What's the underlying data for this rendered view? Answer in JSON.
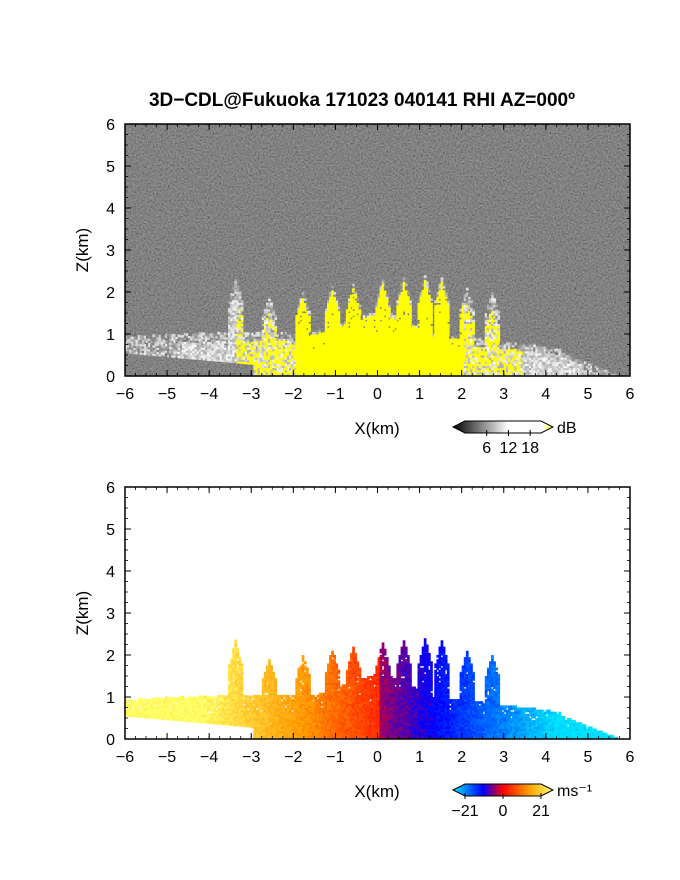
{
  "title": "3D−CDL@Fukuoka 171023 040141 RHI AZ=000º",
  "chart_data": [
    {
      "type": "heatmap",
      "quantity": "reflectivity",
      "xlabel": "X(km)",
      "ylabel": "Z(km)",
      "xlim": [
        -6,
        6
      ],
      "ylim": [
        0,
        6
      ],
      "xticks": [
        "−6",
        "−5",
        "−4",
        "−3",
        "−2",
        "−1",
        "0",
        "1",
        "2",
        "3",
        "4",
        "5",
        "6"
      ],
      "yticks": [
        "0",
        "1",
        "2",
        "3",
        "4",
        "5",
        "6"
      ],
      "colorbar": {
        "unit": "dB",
        "ticks": [
          "6",
          "12",
          "18"
        ],
        "range": [
          0,
          21
        ],
        "colors": [
          "#000000",
          "#ffffff",
          "#ffff00"
        ]
      },
      "echo_top_km": 2.4,
      "saturated_color": "#ffff00"
    },
    {
      "type": "heatmap",
      "quantity": "doppler velocity",
      "xlabel": "X(km)",
      "ylabel": "Z(km)",
      "xlim": [
        -6,
        6
      ],
      "ylim": [
        0,
        6
      ],
      "xticks": [
        "−6",
        "−5",
        "−4",
        "−3",
        "−2",
        "−1",
        "0",
        "1",
        "2",
        "3",
        "4",
        "5",
        "6"
      ],
      "yticks": [
        "0",
        "1",
        "2",
        "3",
        "4",
        "5",
        "6"
      ],
      "colorbar": {
        "unit": "ms⁻¹",
        "ticks": [
          "−21",
          "0",
          "21"
        ],
        "range": [
          -21,
          21
        ],
        "colors": [
          "#00e5ff",
          "#0000ff",
          "#ff0000",
          "#ff9900",
          "#ffff66"
        ]
      },
      "echo_top_km": 2.4
    }
  ]
}
